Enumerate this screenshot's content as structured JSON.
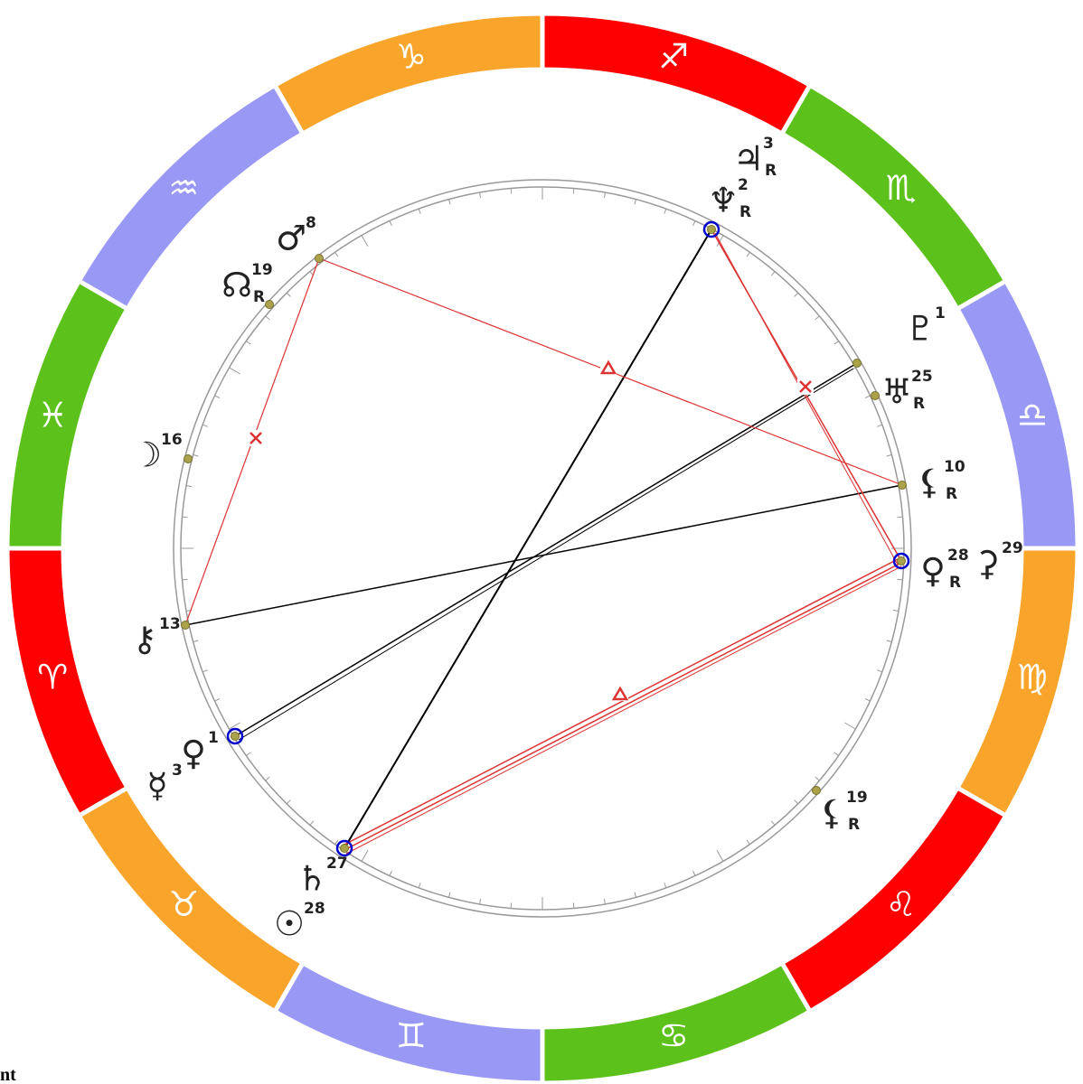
{
  "signs": [
    "♐",
    "♏",
    "♎",
    "♍",
    "♌",
    "♋",
    "♊",
    "♉",
    "♈",
    "♓",
    "♒",
    "♑"
  ],
  "planets": [
    {
      "glyph": "♃",
      "degree": 3,
      "retrograde": "R"
    },
    {
      "glyph": "♆",
      "degree": 2,
      "retrograde": "R"
    },
    {
      "glyph": "♂",
      "degree": 8
    },
    {
      "glyph": "☊",
      "degree": 19,
      "retrograde": "R"
    },
    {
      "glyph": "♇",
      "degree": 1
    },
    {
      "glyph": "♅",
      "degree": 25,
      "retrograde": "R"
    },
    {
      "glyph": "☽",
      "degree": 16
    },
    {
      "glyph": "⚸",
      "degree": 10,
      "retrograde": "R"
    },
    {
      "glyph": "♀",
      "degree": 28,
      "retrograde": "R"
    },
    {
      "glyph": "⚳",
      "degree": 29
    },
    {
      "glyph": "⚷",
      "degree": 13
    },
    {
      "glyph": "♀",
      "degree": 1
    },
    {
      "glyph": "☿",
      "degree": 3
    },
    {
      "glyph": "⚸",
      "degree": 19,
      "retrograde": "R"
    },
    {
      "glyph": "♄",
      "degree": 27
    },
    {
      "glyph": "☉",
      "degree": 28
    }
  ],
  "footer_text": "nt"
}
